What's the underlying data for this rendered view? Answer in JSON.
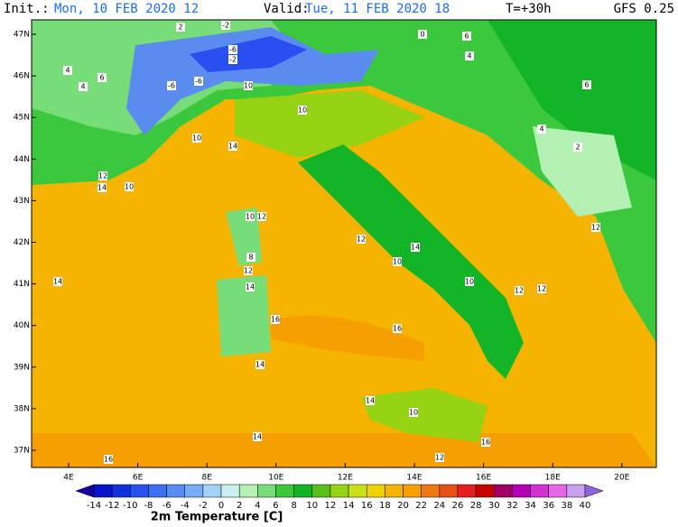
{
  "header": {
    "init_label": "Init.:",
    "init": "Mon, 10 FEB 2020  12",
    "valid_label": "Valid:",
    "valid": "Tue, 11 FEB 2020  18",
    "lead": "T=+30h",
    "model": "GFS 0.25"
  },
  "lat_labels": [
    "47N",
    "46N",
    "45N",
    "44N",
    "43N",
    "42N",
    "41N",
    "40N",
    "39N",
    "38N",
    "37N"
  ],
  "lon_labels": [
    "4E",
    "6E",
    "8E",
    "10E",
    "12E",
    "14E",
    "16E",
    "18E",
    "20E"
  ],
  "contour_labels": [
    2,
    -2,
    -6,
    -2,
    4,
    6,
    4,
    -6,
    -6,
    10,
    10,
    10,
    14,
    12,
    14,
    10,
    12,
    10,
    8,
    12,
    14,
    16,
    10,
    12,
    14,
    10,
    16,
    14,
    12,
    12,
    4,
    2,
    4,
    6,
    14,
    12,
    16,
    14,
    14,
    12,
    10,
    16,
    0,
    6
  ],
  "colorbar": {
    "title": "2m Temperature [C]",
    "labels": [
      -14,
      -12,
      -10,
      -8,
      -6,
      -4,
      -2,
      0,
      2,
      4,
      6,
      8,
      10,
      12,
      14,
      16,
      18,
      20,
      22,
      24,
      26,
      28,
      30,
      32,
      34,
      36,
      38,
      40
    ],
    "colors": [
      "#1400a0",
      "#0a14c8",
      "#1432dc",
      "#2850f0",
      "#3c6ef0",
      "#5a8cf0",
      "#78aaf5",
      "#a0d2fa",
      "#c8f0f0",
      "#b4f0b4",
      "#78dc78",
      "#3cc83c",
      "#14b428",
      "#5abe1e",
      "#96d214",
      "#c8e114",
      "#f0d200",
      "#f5b400",
      "#f5a000",
      "#f07814",
      "#e65014",
      "#e61e1e",
      "#c80000",
      "#a00064",
      "#b400b4",
      "#d232d2",
      "#e664e6",
      "#c8a0f0",
      "#8c64dc"
    ]
  }
}
